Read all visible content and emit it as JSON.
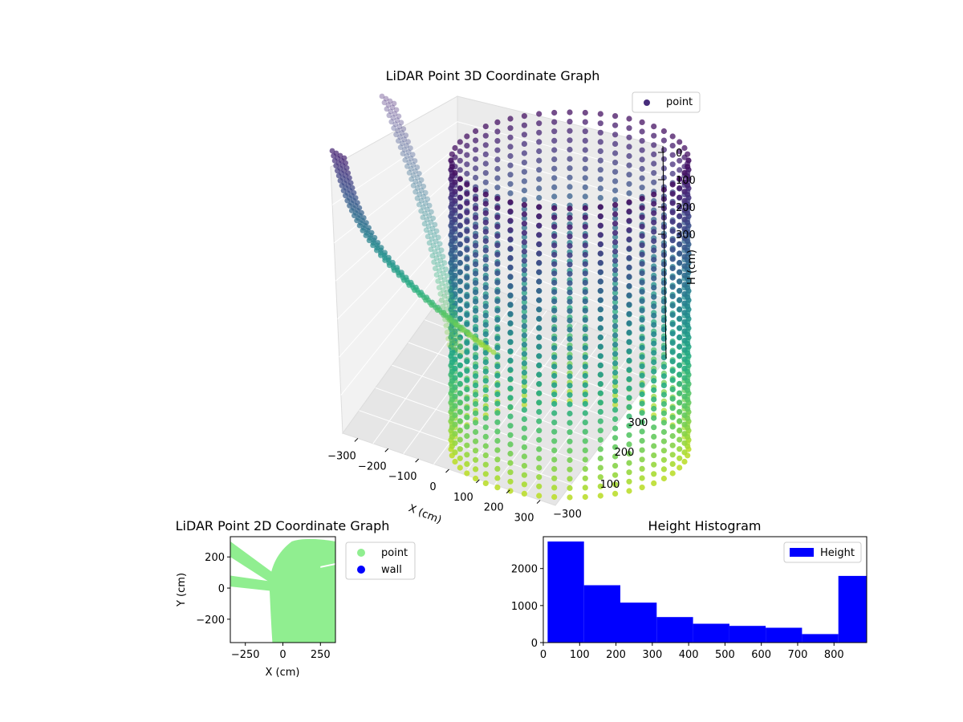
{
  "chart_data": [
    {
      "type": "scatter",
      "title": "LiDAR Point 3D Coordinate Graph",
      "xlabel": "X (cm)",
      "ylabel": "",
      "zlabel": "H (cm)",
      "x_ticks": [
        "−300",
        "−200",
        "−100",
        "0",
        "100",
        "200",
        "300"
      ],
      "y_ticks": [
        "−300",
        "100",
        "200",
        "300"
      ],
      "z_ticks": [
        "0",
        "100",
        "200",
        "300"
      ],
      "xlim": [
        -350,
        350
      ],
      "ylim": [
        -350,
        350
      ],
      "zlim": [
        0,
        900
      ],
      "zaxis_inverted": true,
      "grid": true,
      "colormap": "viridis",
      "legend": {
        "entries": [
          "point"
        ],
        "placement": "upper-right",
        "marker_color": "#472d7b"
      },
      "series": [
        {
          "name": "point",
          "description_shapes": [
            {
              "shape": "cylinder",
              "center": [
                70,
                0
              ],
              "radius": 300,
              "z_range": [
                0,
                900
              ],
              "columns": 48,
              "rows": 32
            },
            {
              "shape": "arm",
              "x": -330,
              "y_range": [
                -330,
                60
              ],
              "z_range": [
                600,
                0
              ]
            },
            {
              "shape": "arm",
              "x": -180,
              "y_range": [
                -330,
                80
              ],
              "z_range": [
                700,
                0
              ]
            }
          ]
        }
      ]
    },
    {
      "type": "scatter",
      "title": "LiDAR Point 2D Coordinate Graph",
      "xlabel": "X (cm)",
      "ylabel": "Y (cm)",
      "x_ticks": [
        "−250",
        "0",
        "250"
      ],
      "y_ticks": [
        "200",
        "0",
        "−200"
      ],
      "xlim": [
        -350,
        350
      ],
      "ylim": [
        -350,
        330
      ],
      "legend": {
        "placement": "outside-right",
        "entries": [
          {
            "name": "point",
            "color": "#90ee90"
          },
          {
            "name": "wall",
            "color": "#0000ff"
          }
        ]
      },
      "series": [
        {
          "name": "point",
          "color": "#90ee90"
        },
        {
          "name": "wall",
          "color": "#0000ff"
        }
      ]
    },
    {
      "type": "bar",
      "title": "Height Histogram",
      "xlabel": "",
      "ylabel": "",
      "bin_edges": [
        0,
        100,
        200,
        300,
        400,
        500,
        600,
        700,
        800,
        900
      ],
      "values": [
        2730,
        1550,
        1080,
        690,
        510,
        450,
        400,
        230,
        1800
      ],
      "x_ticks": [
        "0",
        "100",
        "200",
        "300",
        "400",
        "500",
        "600",
        "700",
        "800"
      ],
      "y_ticks": [
        "0",
        "1000",
        "2000"
      ],
      "xlim": [
        0,
        890
      ],
      "ylim": [
        0,
        2860
      ],
      "color": "#0000ff",
      "legend": {
        "entries": [
          "Height"
        ],
        "placement": "upper-right"
      },
      "series": [
        {
          "name": "Height",
          "values": [
            2730,
            1550,
            1080,
            690,
            510,
            450,
            400,
            230,
            1800
          ]
        }
      ]
    }
  ]
}
